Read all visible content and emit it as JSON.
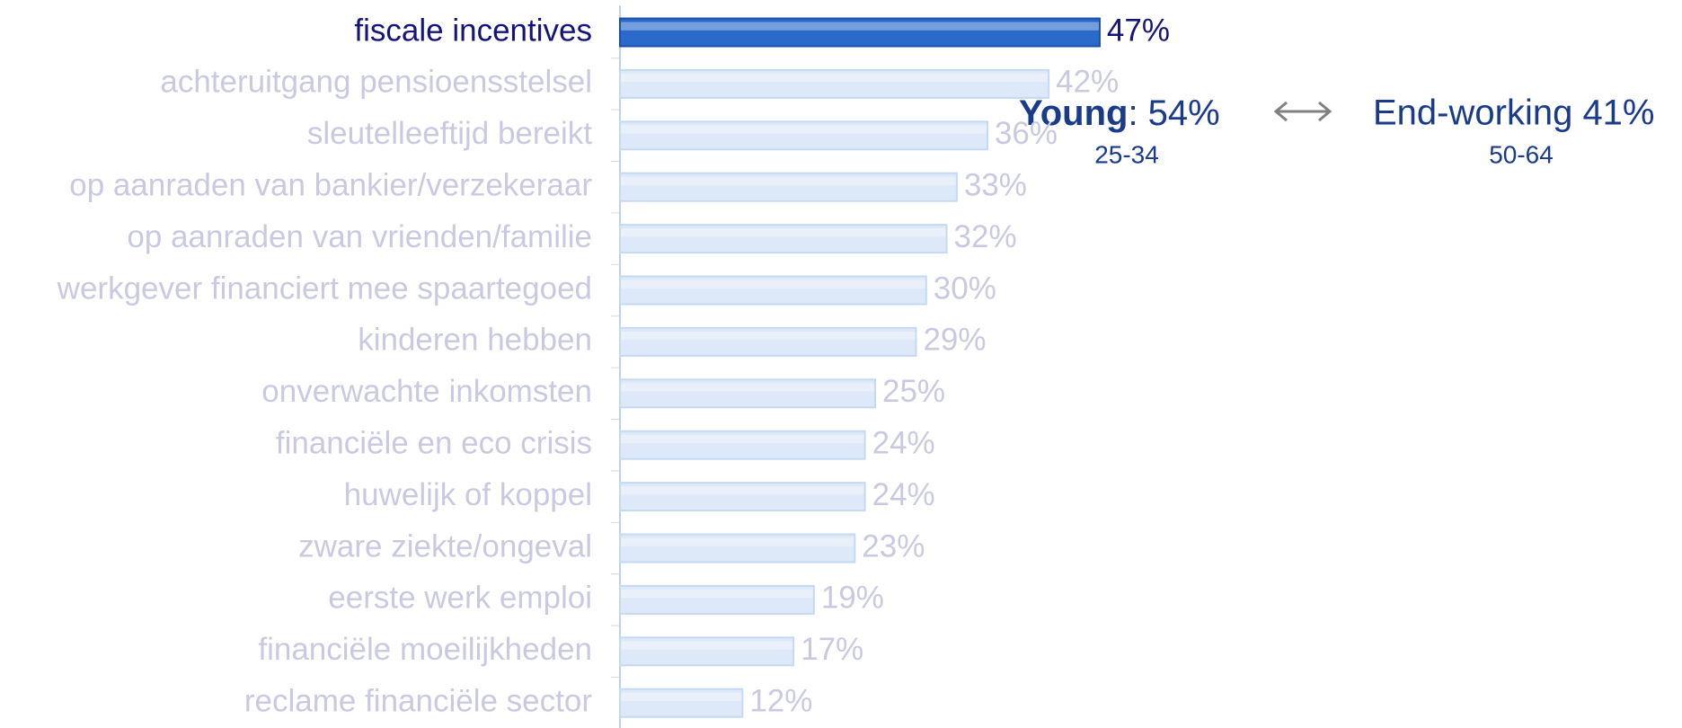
{
  "chart_data": {
    "type": "bar",
    "orientation": "horizontal",
    "categories": [
      "fiscale incentives",
      "achteruitgang pensioensstelsel",
      "sleutelleeftijd bereikt",
      "op aanraden van bankier/verzekeraar",
      "op aanraden van vrienden/familie",
      "werkgever financiert mee spaartegoed",
      "kinderen hebben",
      "onverwachte inkomsten",
      "financiële en eco crisis",
      "huwelijk of koppel",
      "zware ziekte/ongeval",
      "eerste werk emploi",
      "financiële moeilijkheden",
      "reclame financiële sector"
    ],
    "values": [
      47,
      42,
      36,
      33,
      32,
      30,
      29,
      25,
      24,
      24,
      23,
      19,
      17,
      12
    ],
    "value_labels": [
      "47%",
      "42%",
      "36%",
      "33%",
      "32%",
      "30%",
      "29%",
      "25%",
      "24%",
      "24%",
      "23%",
      "19%",
      "17%",
      "12%"
    ],
    "bar_colors": [
      "#2a6acb",
      "#dde8f8",
      "#dde8f8",
      "#dde8f8",
      "#dde8f8",
      "#dde8f8",
      "#dde8f8",
      "#dde8f8",
      "#dde8f8",
      "#dde8f8",
      "#dde8f8",
      "#dde8f8",
      "#dde8f8",
      "#dde8f8"
    ],
    "label_colors": [
      "#14147a",
      "#c9c9e2",
      "#c9c9e2",
      "#c9c9e2",
      "#c9c9e2",
      "#c9c9e2",
      "#c9c9e2",
      "#c9c9e2",
      "#c9c9e2",
      "#c9c9e2",
      "#c9c9e2",
      "#c9c9e2",
      "#c9c9e2",
      "#c9c9e2"
    ],
    "annotations": {
      "young": "Young",
      "young_value": ": 54%",
      "young_age": "25-34",
      "end": "End-working 41%",
      "end_age": "50-64"
    }
  }
}
